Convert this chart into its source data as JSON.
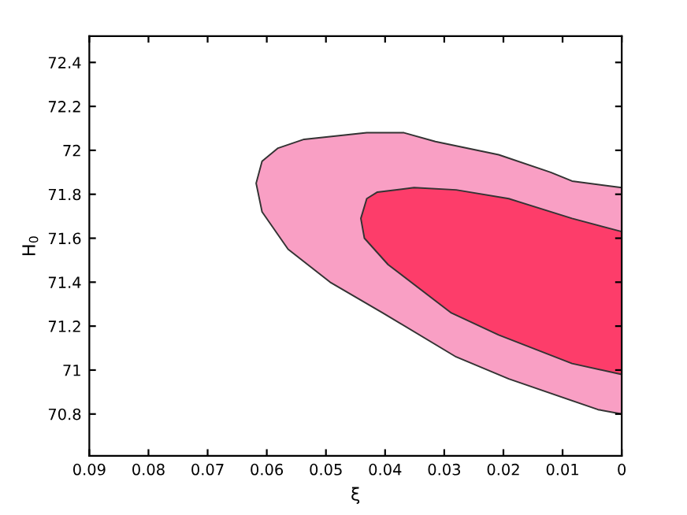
{
  "chart_data": {
    "type": "area",
    "xlabel": "ξ",
    "ylabel": "H$_{0}$",
    "xlim": [
      0.09,
      0
    ],
    "ylim": [
      70.61,
      72.52
    ],
    "xticks": [
      0.09,
      0.08,
      0.07,
      0.06,
      0.05,
      0.04,
      0.03,
      0.02,
      0.01,
      0
    ],
    "yticks": [
      70.8,
      71,
      71.2,
      71.4,
      71.6,
      71.8,
      72,
      72.2,
      72.4
    ],
    "grid": false,
    "legend": false,
    "series": [
      {
        "color": "#f99fc4",
        "x": [
          0,
          0.0084,
          0.012,
          0.0208,
          0.0315,
          0.0368,
          0.0431,
          0.0537,
          0.0581,
          0.0608,
          0.0618,
          0.0608,
          0.0564,
          0.0493,
          0.0404,
          0.028,
          0.0191,
          0.004,
          0
        ],
        "values": [
          71.83,
          71.86,
          71.9,
          71.98,
          72.04,
          72.08,
          72.08,
          72.05,
          72.01,
          71.95,
          71.85,
          71.72,
          71.55,
          71.4,
          71.26,
          71.06,
          70.96,
          70.82,
          70.8
        ]
      },
      {
        "color": "#fd3d6a",
        "x": [
          0,
          0.0084,
          0.0191,
          0.028,
          0.0351,
          0.0413,
          0.0431,
          0.0441,
          0.0435,
          0.0395,
          0.0288,
          0.0208,
          0.0084,
          0
        ],
        "values": [
          71.63,
          71.69,
          71.78,
          71.82,
          71.83,
          71.81,
          71.78,
          71.69,
          71.6,
          71.48,
          71.26,
          71.16,
          71.03,
          70.98
        ]
      }
    ]
  }
}
